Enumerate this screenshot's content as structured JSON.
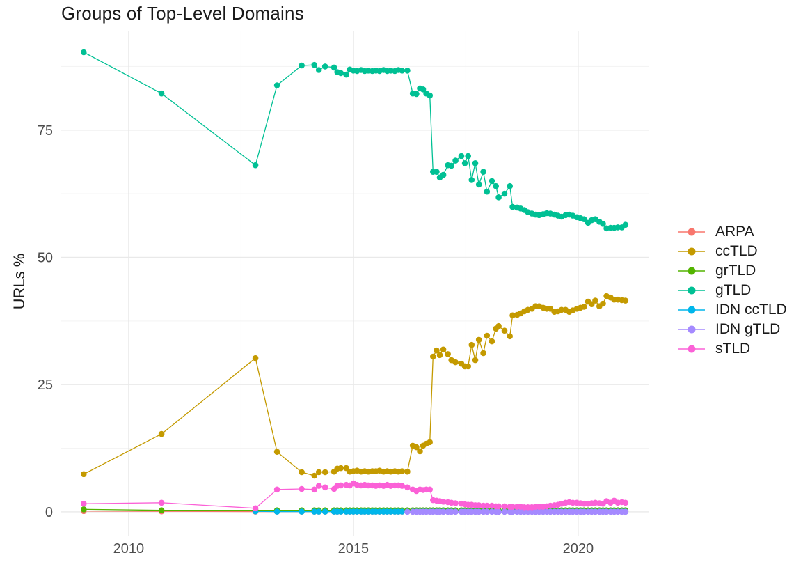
{
  "chart_data": {
    "type": "scatter",
    "title": "Groups of Top-Level Domains",
    "xlabel": "",
    "ylabel": "URLs %",
    "xlim": [
      2008.5,
      2021.58
    ],
    "ylim": [
      -4.8,
      94.4
    ],
    "grid": true,
    "legend_position": "right",
    "background_color": "#ffffff",
    "grid_major_color": "#e9e9e9",
    "grid_minor_color": "#f3f3f3",
    "tick_label_color": "#4d4d4d",
    "x_ticks": [
      {
        "value": 2010,
        "label": "2010"
      },
      {
        "value": 2015,
        "label": "2015"
      },
      {
        "value": 2020,
        "label": "2020"
      }
    ],
    "x_minor_ticks": [
      2012.5,
      2017.5
    ],
    "y_ticks": [
      {
        "value": 0,
        "label": "0"
      },
      {
        "value": 25,
        "label": "25"
      },
      {
        "value": 50,
        "label": "50"
      },
      {
        "value": 75,
        "label": "75"
      }
    ],
    "y_minor_ticks": [
      12.5,
      37.5,
      62.5,
      87.5
    ],
    "x_grid": [
      2014.13,
      2014.23,
      2014.37,
      2014.57,
      2014.64,
      2014.72,
      2014.84,
      2014.92,
      2015.0,
      2015.08,
      2015.17,
      2015.25,
      2015.33,
      2015.42,
      2015.5,
      2015.58,
      2015.67,
      2015.75,
      2015.83,
      2015.92,
      2016.0,
      2016.08,
      2016.2,
      2016.32,
      2016.4,
      2016.48,
      2016.55,
      2016.62,
      2016.7,
      2016.77,
      2016.85,
      2016.92,
      2017.0,
      2017.1,
      2017.18,
      2017.27,
      2017.4,
      2017.48,
      2017.55,
      2017.63,
      2017.71,
      2017.79,
      2017.89,
      2017.97,
      2018.08,
      2018.17,
      2018.23,
      2018.36,
      2018.48,
      2018.54,
      2018.64,
      2018.72,
      2018.8,
      2018.88,
      2018.97,
      2019.05,
      2019.13,
      2019.22,
      2019.3,
      2019.38,
      2019.47,
      2019.55,
      2019.63,
      2019.72,
      2019.8,
      2019.88,
      2019.97,
      2020.05,
      2020.13,
      2020.22,
      2020.3,
      2020.38,
      2020.47,
      2020.55,
      2020.63,
      2020.72,
      2020.8,
      2020.88,
      2020.97,
      2021.05
    ],
    "series": [
      {
        "name": "ARPA",
        "color": "#F8766D",
        "early": [
          [
            2009.0,
            0.15
          ],
          [
            2010.73,
            0.1
          ],
          [
            2012.82,
            0.05
          ],
          [
            2013.3,
            0.05
          ],
          [
            2013.85,
            0.05
          ]
        ],
        "grid_const": 0.05
      },
      {
        "name": "ccTLD",
        "color": "#C49A00",
        "early": [
          [
            2009.0,
            7.4
          ],
          [
            2010.73,
            15.3
          ],
          [
            2012.82,
            30.2
          ],
          [
            2013.3,
            11.8
          ],
          [
            2013.85,
            7.8
          ]
        ],
        "grid_y": [
          7.1,
          7.8,
          7.8,
          7.9,
          8.5,
          8.6,
          8.6,
          7.9,
          8.0,
          8.1,
          7.9,
          8.0,
          7.9,
          8.0,
          8.0,
          8.1,
          7.9,
          8.0,
          7.9,
          8.0,
          7.9,
          8.0,
          7.9,
          13.0,
          12.7,
          11.9,
          13.0,
          13.4,
          13.7,
          30.5,
          31.7,
          30.8,
          31.9,
          31.0,
          29.8,
          29.4,
          29.1,
          28.6,
          28.6,
          32.8,
          29.8,
          33.8,
          31.2,
          34.6,
          33.5,
          36.0,
          36.5,
          35.6,
          34.5,
          38.6,
          38.7,
          39.0,
          39.4,
          39.7,
          39.9,
          40.4,
          40.4,
          40.1,
          39.9,
          39.9,
          39.3,
          39.4,
          39.7,
          39.7,
          39.3,
          39.6,
          39.9,
          40.1,
          40.3,
          41.3,
          40.8,
          41.5,
          40.4,
          40.9,
          42.4,
          42.1,
          41.7,
          41.7,
          41.6,
          41.5
        ]
      },
      {
        "name": "grTLD",
        "color": "#53B400",
        "early": [
          [
            2009.0,
            0.5
          ],
          [
            2010.73,
            0.3
          ],
          [
            2012.82,
            0.3
          ],
          [
            2013.3,
            0.3
          ],
          [
            2013.85,
            0.3
          ]
        ],
        "grid_const": 0.3
      },
      {
        "name": "gTLD",
        "color": "#00C094",
        "early": [
          [
            2009.0,
            90.3
          ],
          [
            2010.73,
            82.2
          ],
          [
            2012.82,
            68.1
          ],
          [
            2013.3,
            83.8
          ],
          [
            2013.85,
            87.7
          ]
        ],
        "grid_y": [
          87.8,
          86.8,
          87.5,
          87.3,
          86.4,
          86.2,
          85.9,
          86.9,
          86.7,
          86.6,
          86.8,
          86.6,
          86.7,
          86.6,
          86.7,
          86.6,
          86.8,
          86.6,
          86.7,
          86.6,
          86.8,
          86.7,
          86.7,
          82.2,
          82.1,
          83.2,
          83.0,
          82.2,
          81.8,
          66.8,
          66.8,
          65.7,
          66.2,
          68.1,
          68.0,
          69.0,
          69.9,
          68.5,
          69.9,
          65.2,
          68.5,
          64.3,
          66.8,
          62.9,
          65.0,
          64.0,
          61.8,
          62.5,
          64.0,
          59.9,
          59.8,
          59.6,
          59.3,
          58.9,
          58.6,
          58.4,
          58.3,
          58.5,
          58.7,
          58.6,
          58.4,
          58.2,
          58.0,
          58.3,
          58.4,
          58.2,
          57.9,
          57.7,
          57.5,
          56.8,
          57.3,
          57.5,
          57.0,
          56.6,
          55.7,
          55.8,
          55.8,
          55.9,
          55.9,
          56.4
        ]
      },
      {
        "name": "IDN ccTLD",
        "color": "#00B6EB",
        "early": [
          [
            2012.82,
            0.1
          ],
          [
            2013.3,
            0.05
          ],
          [
            2013.85,
            0.05
          ]
        ],
        "grid_const": 0.05
      },
      {
        "name": "IDN gTLD",
        "color": "#A58AFF",
        "early": [],
        "grid_const": 0.02,
        "grid_start": 22
      },
      {
        "name": "sTLD",
        "color": "#FB61D7",
        "early": [
          [
            2009.0,
            1.6
          ],
          [
            2010.73,
            1.8
          ],
          [
            2012.82,
            0.7
          ],
          [
            2013.3,
            4.4
          ],
          [
            2013.85,
            4.5
          ]
        ],
        "grid_y": [
          4.4,
          5.1,
          4.8,
          4.5,
          5.1,
          5.2,
          5.3,
          5.2,
          5.6,
          5.3,
          5.2,
          5.3,
          5.2,
          5.2,
          5.1,
          5.2,
          5.1,
          5.3,
          5.1,
          5.2,
          5.2,
          5.1,
          4.8,
          4.4,
          4.1,
          4.4,
          4.3,
          4.4,
          4.4,
          2.3,
          2.2,
          2.1,
          2.0,
          1.9,
          1.8,
          1.7,
          1.6,
          1.5,
          1.4,
          1.4,
          1.3,
          1.3,
          1.2,
          1.2,
          1.2,
          1.1,
          1.1,
          1.1,
          1.0,
          1.0,
          1.0,
          1.0,
          0.9,
          0.9,
          0.9,
          1.0,
          1.0,
          1.0,
          1.1,
          1.2,
          1.3,
          1.4,
          1.6,
          1.8,
          1.9,
          1.8,
          1.8,
          1.7,
          1.6,
          1.6,
          1.7,
          1.8,
          1.7,
          1.6,
          2.1,
          1.8,
          2.2,
          1.8,
          1.9,
          1.8
        ]
      }
    ]
  }
}
